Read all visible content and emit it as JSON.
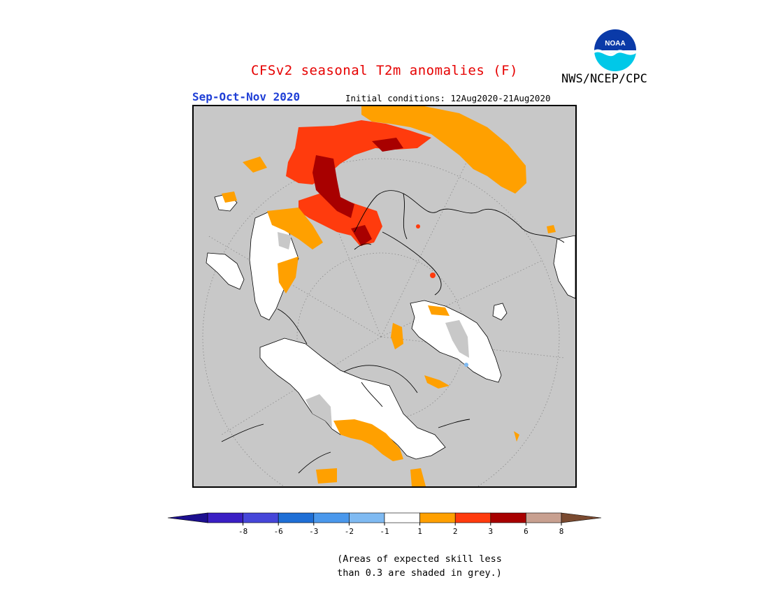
{
  "header": {
    "title": "CFSv2 seasonal T2m anomalies (F)",
    "season": "Sep-Oct-Nov 2020",
    "initial_conditions": "Initial conditions: 12Aug2020-21Aug2020",
    "agency": "NWS/NCEP/CPC",
    "logo_text": "NOAA",
    "logo_icon": "noaa-logo-icon"
  },
  "legend": {
    "labels": [
      "-8",
      "-6",
      "-3",
      "-2",
      "-1",
      "1",
      "2",
      "3",
      "6",
      "8"
    ],
    "colors": {
      "below_min": "#1c0f8f",
      "bins": [
        "#3a1fc4",
        "#4646d9",
        "#1f6fd6",
        "#4a98ec",
        "#7fbaf2",
        "#ffffff",
        "#ffa000",
        "#ff3b0d",
        "#a80000",
        "#c8a090"
      ],
      "above_max": "#7a4a30"
    }
  },
  "note": {
    "line1": "(Areas of expected skill less",
    "line2": "than 0.3 are shaded in grey.)"
  },
  "map": {
    "projection": "north-polar-stereographic",
    "grey_color": "#c8c8c8",
    "neutral_color": "#ffffff",
    "warm1_color": "#ffa000",
    "warm2_color": "#ff3b0d",
    "warm3_color": "#a80000"
  }
}
